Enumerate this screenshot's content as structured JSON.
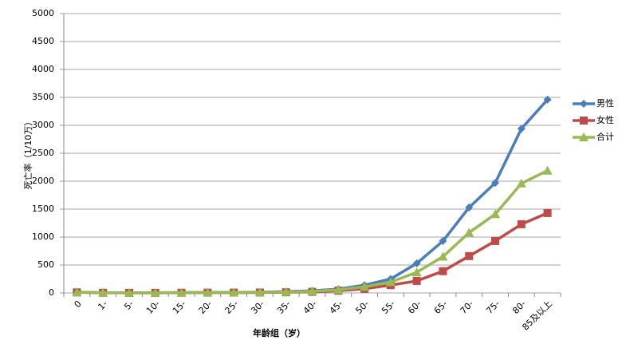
{
  "chart_data": {
    "type": "line",
    "x_label": "年龄组（岁）",
    "y_label": "死亡率（1/10万）",
    "categories": [
      "0",
      "1-",
      "5-",
      "10-",
      "15-",
      "20-",
      "25-",
      "30-",
      "35-",
      "40-",
      "45-",
      "50-",
      "55-",
      "60-",
      "65-",
      "70-",
      "75-",
      "80-",
      "85及以上"
    ],
    "series": [
      {
        "name": "男性",
        "color": "#4a7ebb",
        "marker": "diamond",
        "values": [
          15,
          5,
          3,
          3,
          8,
          10,
          10,
          15,
          25,
          40,
          70,
          140,
          250,
          530,
          930,
          1530,
          1970,
          2940,
          3460
        ]
      },
      {
        "name": "女性",
        "color": "#be4b48",
        "marker": "square",
        "values": [
          10,
          3,
          2,
          2,
          4,
          5,
          6,
          8,
          12,
          20,
          40,
          75,
          140,
          215,
          390,
          660,
          930,
          1230,
          1430
        ]
      },
      {
        "name": "合计",
        "color": "#98b954",
        "marker": "triangle",
        "values": [
          12,
          4,
          2,
          3,
          6,
          8,
          8,
          12,
          18,
          30,
          55,
          110,
          195,
          370,
          650,
          1080,
          1410,
          1960,
          2190
        ]
      }
    ],
    "ylim": [
      0,
      5000
    ],
    "yticks": [
      0,
      500,
      1000,
      1500,
      2000,
      2500,
      3000,
      3500,
      4000,
      4500,
      5000
    ],
    "grid": true,
    "legend": "right"
  }
}
